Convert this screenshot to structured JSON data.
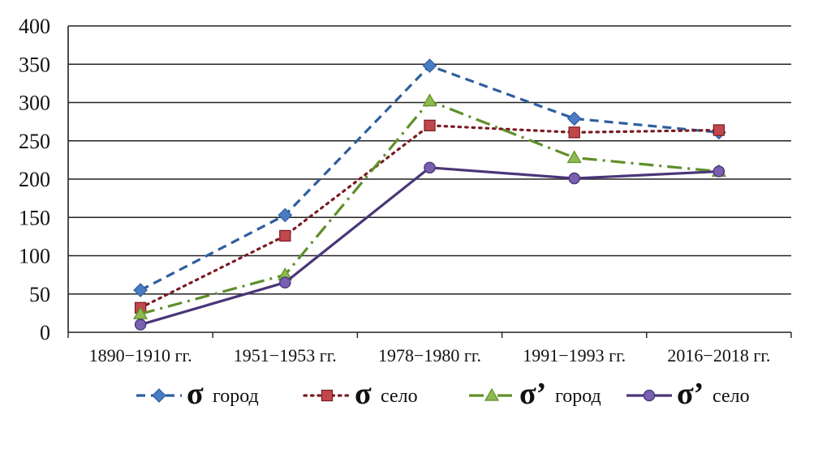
{
  "chart_data": {
    "type": "line",
    "title": "",
    "xlabel": "",
    "ylabel": "",
    "ylim": [
      0,
      400
    ],
    "yticks": [
      0,
      50,
      100,
      150,
      200,
      250,
      300,
      350,
      400
    ],
    "ytick_labels": [
      "0",
      "50",
      "100",
      "150",
      "200",
      "250",
      "300",
      "350",
      "400"
    ],
    "grid": true,
    "legend_position": "bottom",
    "categories": [
      "1890−1910 гг.",
      "1951−1953 гг.",
      "1978−1980 гг.",
      "1991−1993 гг.",
      "2016−2018 гг."
    ],
    "series": [
      {
        "name": "σ город",
        "symbol": "σ",
        "label": "город",
        "values": [
          55,
          153,
          348,
          279,
          261
        ],
        "color": "#2f5e9e",
        "marker_color": "#4a7cc4",
        "marker": "diamond",
        "dash": "dashed"
      },
      {
        "name": "σ село",
        "symbol": "σ",
        "label": "село",
        "values": [
          32,
          126,
          270,
          261,
          264
        ],
        "color": "#7a1a22",
        "marker_color": "#c0484a",
        "marker": "square",
        "dash": "dotted"
      },
      {
        "name": "σ’ город",
        "symbol": "σ’",
        "label": "город",
        "values": [
          24,
          75,
          302,
          228,
          210
        ],
        "color": "#5f8f2a",
        "marker_color": "#8cba4e",
        "marker": "triangle",
        "dash": "dashdot"
      },
      {
        "name": "σ’ село",
        "symbol": "σ’",
        "label": "село",
        "values": [
          10,
          65,
          215,
          201,
          210
        ],
        "color": "#4a3678",
        "marker_color": "#7a60b0",
        "marker": "circle",
        "dash": "solid"
      }
    ]
  }
}
